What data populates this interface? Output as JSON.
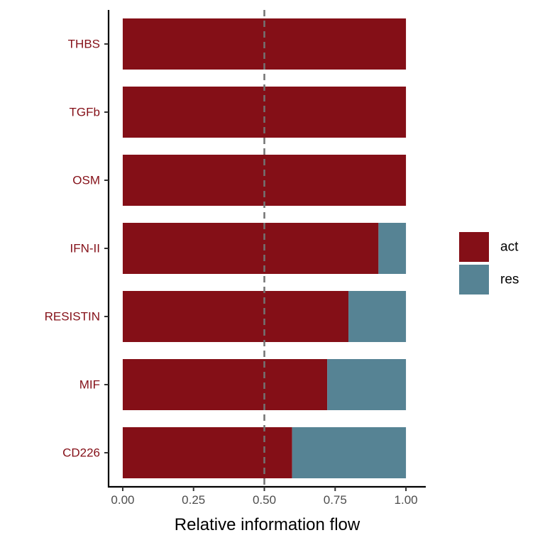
{
  "chart_data": {
    "type": "bar",
    "orientation": "horizontal",
    "stacked": true,
    "categories": [
      "THBS",
      "TGFb",
      "OSM",
      "IFN-II",
      "RESISTIN",
      "MIF",
      "CD226"
    ],
    "series": [
      {
        "name": "act",
        "color": "#840F17",
        "values": [
          1.0,
          1.0,
          1.0,
          0.903,
          0.797,
          0.722,
          0.598
        ]
      },
      {
        "name": "res",
        "color": "#568394",
        "values": [
          0.0,
          0.0,
          0.0,
          0.097,
          0.203,
          0.278,
          0.402
        ]
      }
    ],
    "xlabel": "Relative information flow",
    "ylabel": "",
    "xlim": [
      -0.05,
      1.07
    ],
    "xticks": [
      0.0,
      0.25,
      0.5,
      0.75,
      1.0
    ],
    "xtick_labels": [
      "0.00",
      "0.25",
      "0.50",
      "0.75",
      "1.00"
    ],
    "reference_line": {
      "x": 0.5,
      "style": "dashed",
      "color": "#737373"
    },
    "category_label_color": "#840F17",
    "legend_position": "right",
    "grid": false
  }
}
